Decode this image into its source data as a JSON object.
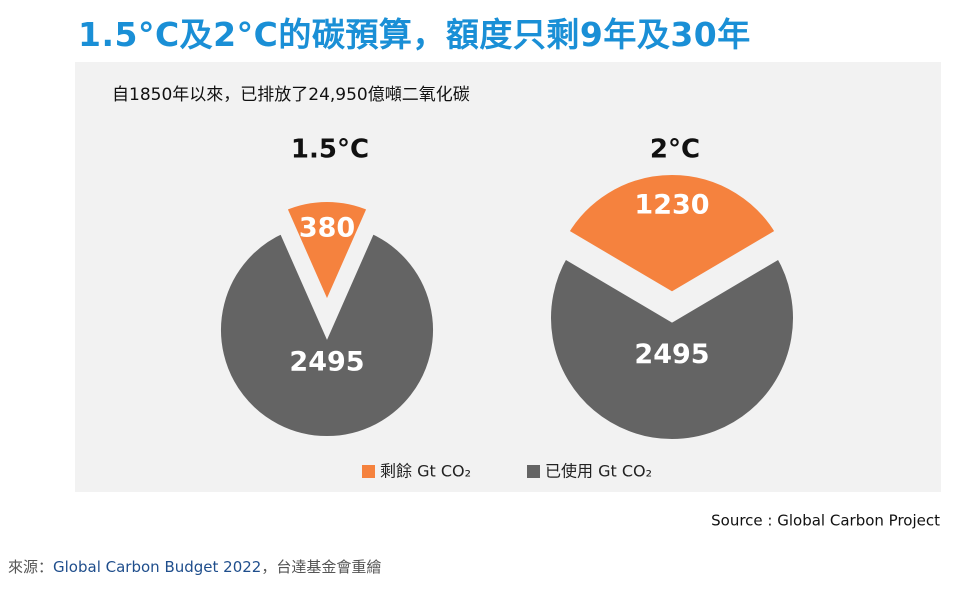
{
  "header": {
    "title": "1.5°C及2°C的碳預算，額度只剩9年及30年"
  },
  "subtitle": "自1850年以來，已排放了24,950億噸二氧化碳",
  "source": "Source : Global Carbon Project",
  "caption": {
    "prefix": "來源：",
    "link": "Global Carbon Budget 2022",
    "suffix": "，台達基金會重繪"
  },
  "chart_data": [
    {
      "type": "pie",
      "title": "1.5°C",
      "categories": [
        "剩餘 Gt CO₂",
        "已使用 Gt CO₂"
      ],
      "values": [
        380,
        2495
      ],
      "colors": [
        "#f5823e",
        "#646464"
      ]
    },
    {
      "type": "pie",
      "title": "2°C",
      "categories": [
        "剩餘 Gt CO₂",
        "已使用 Gt CO₂"
      ],
      "values": [
        1230,
        2495
      ],
      "colors": [
        "#f5823e",
        "#646464"
      ]
    }
  ]
}
